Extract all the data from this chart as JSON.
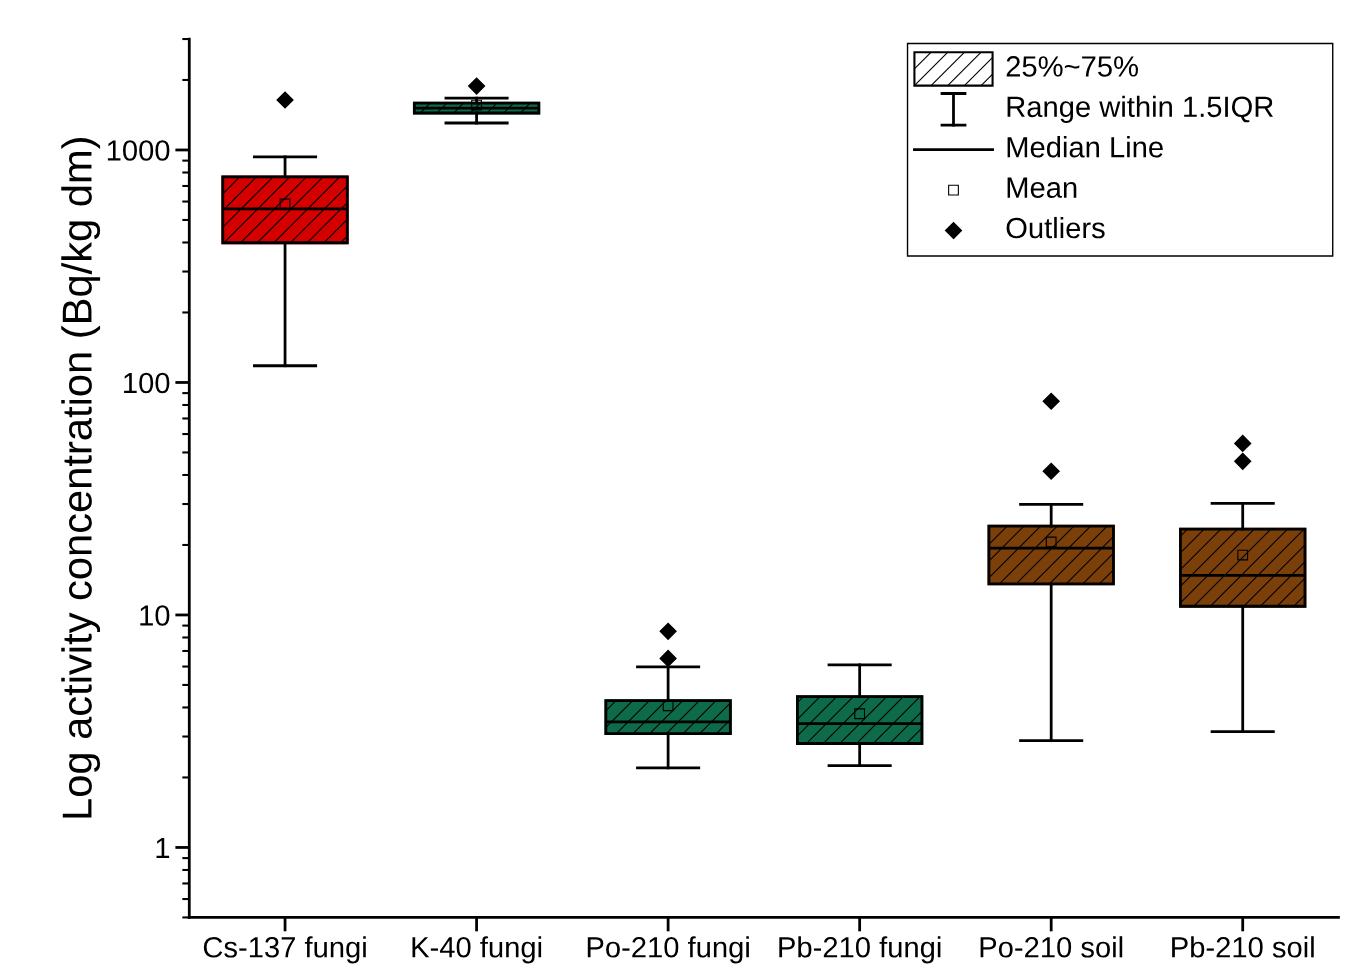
{
  "chart_data": {
    "type": "box",
    "ylabel": "Log activity concentration (Bq/kg dm)",
    "categories": [
      "Cs-137 fungi",
      "K-40 fungi",
      "Po-210 fungi",
      "Pb-210 fungi",
      "Po-210 soil",
      "Pb-210 soil"
    ],
    "colors": [
      "#d40000",
      "#0d6b4a",
      "#0d6b4a",
      "#0d6b4a",
      "#7b3f0a",
      "#7b3f0a"
    ],
    "boxes": [
      {
        "low": 118,
        "q1": 399,
        "median": 558,
        "q3": 766,
        "high": 933,
        "mean": 586,
        "outliers": [
          1640
        ]
      },
      {
        "low": 1306,
        "q1": 1442,
        "median": 1514,
        "q3": 1592,
        "high": 1671,
        "mean": 1560,
        "outliers": [
          1883
        ]
      },
      {
        "low": 2.2,
        "q1": 3.09,
        "median": 3.47,
        "q3": 4.28,
        "high": 5.98,
        "mean": 4.07,
        "outliers": [
          6.5,
          8.5
        ]
      },
      {
        "low": 2.25,
        "q1": 2.8,
        "median": 3.41,
        "q3": 4.45,
        "high": 6.1,
        "mean": 3.76
      },
      {
        "low": 2.88,
        "q1": 13.6,
        "median": 19.4,
        "q3": 24.1,
        "high": 29.9,
        "mean": 20.6,
        "outliers": [
          41.5,
          83
        ]
      },
      {
        "low": 3.15,
        "q1": 10.9,
        "median": 14.8,
        "q3": 23.4,
        "high": 30.2,
        "mean": 18.1,
        "outliers": [
          45.8,
          54.7
        ]
      }
    ],
    "log": "y",
    "ylim": [
      0.5,
      3000
    ],
    "yticks": [
      1,
      10,
      100,
      1000
    ],
    "grid": false,
    "annotations": [
      "25%~75%",
      "Range within 1.5IQR",
      "Median Line",
      "Mean",
      "Outliers"
    ]
  }
}
